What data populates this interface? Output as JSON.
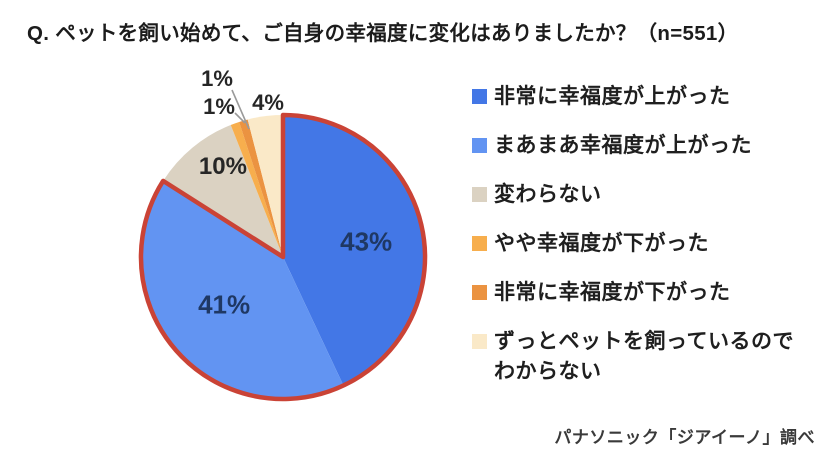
{
  "title": "Q. ペットを飼い始めて、ご自身の幸福度に変化はありましたか？（n=551）",
  "source_caption": "パナソニック「ジアイーノ」調べ",
  "colors": {
    "highlight_outline": "#CA4336",
    "label_navy": "#1F3864",
    "label_dark": "#262626",
    "leader_line": "#9a9a9a",
    "background": "#ffffff"
  },
  "chart_data": {
    "type": "pie",
    "title": "Q. ペットを飼い始めて、ご自身の幸福度に変化はありましたか？（n=551）",
    "sample_size": "n=551",
    "start_angle_deg_from_top": 0,
    "direction": "clockwise",
    "categories": [
      "非常に幸福度が上がった",
      "まあまあ幸福度が上がった",
      "変わらない",
      "やや幸福度が下がった",
      "非常に幸福度が下がった",
      "ずっとペットを飼っているのでわからない"
    ],
    "values": [
      43,
      41,
      10,
      1,
      1,
      4
    ],
    "labels": [
      "43%",
      "41%",
      "10%",
      "1%",
      "1%",
      "4%"
    ],
    "colors": [
      "#4377E6",
      "#6294F2",
      "#DBD2C2",
      "#F7AE4D",
      "#EB9341",
      "#FAE9C8"
    ],
    "highlighted_slices": [
      0,
      1
    ],
    "legend_position": "right",
    "grid": false
  }
}
